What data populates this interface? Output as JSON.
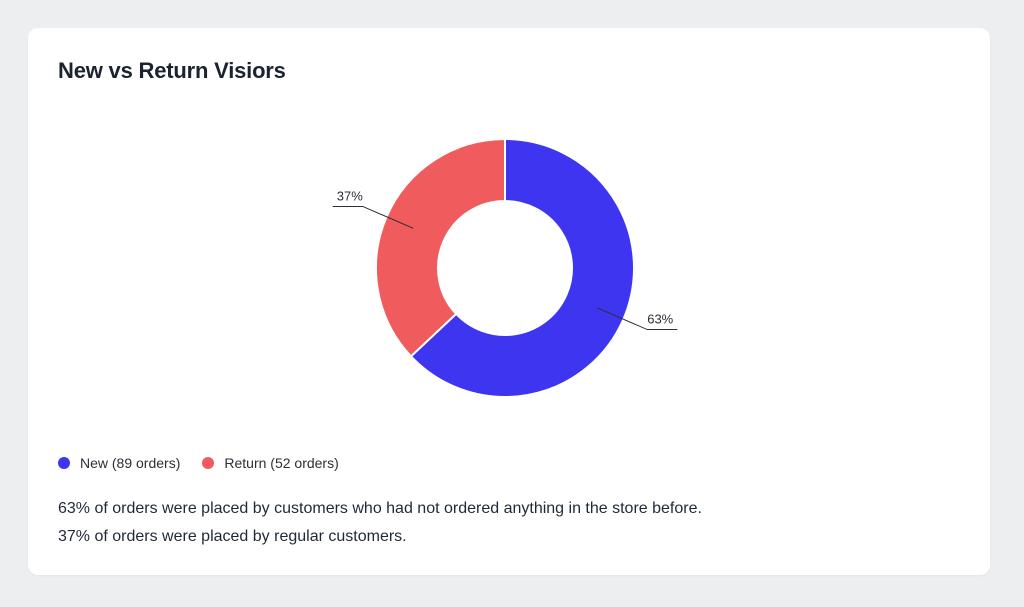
{
  "card": {
    "title": "New vs Return Visiors"
  },
  "chart_data": {
    "type": "pie",
    "donut": true,
    "title": "New vs Return Visiors",
    "slices": [
      {
        "name": "New",
        "orders": 89,
        "percent": 63,
        "label": "63%",
        "color": "#3d35f0"
      },
      {
        "name": "Return",
        "orders": 52,
        "percent": 37,
        "label": "37%",
        "color": "#f05c5e"
      }
    ],
    "legend": {
      "placement": "bottom-left",
      "items": [
        {
          "label": "New (89 orders)",
          "color": "#3d35f0"
        },
        {
          "label": "Return (52 orders)",
          "color": "#f05c5e"
        }
      ]
    }
  },
  "summary": {
    "line1": "63% of orders were placed by customers who had not ordered anything in the store before.",
    "line2": "37% of orders were placed by regular customers."
  }
}
